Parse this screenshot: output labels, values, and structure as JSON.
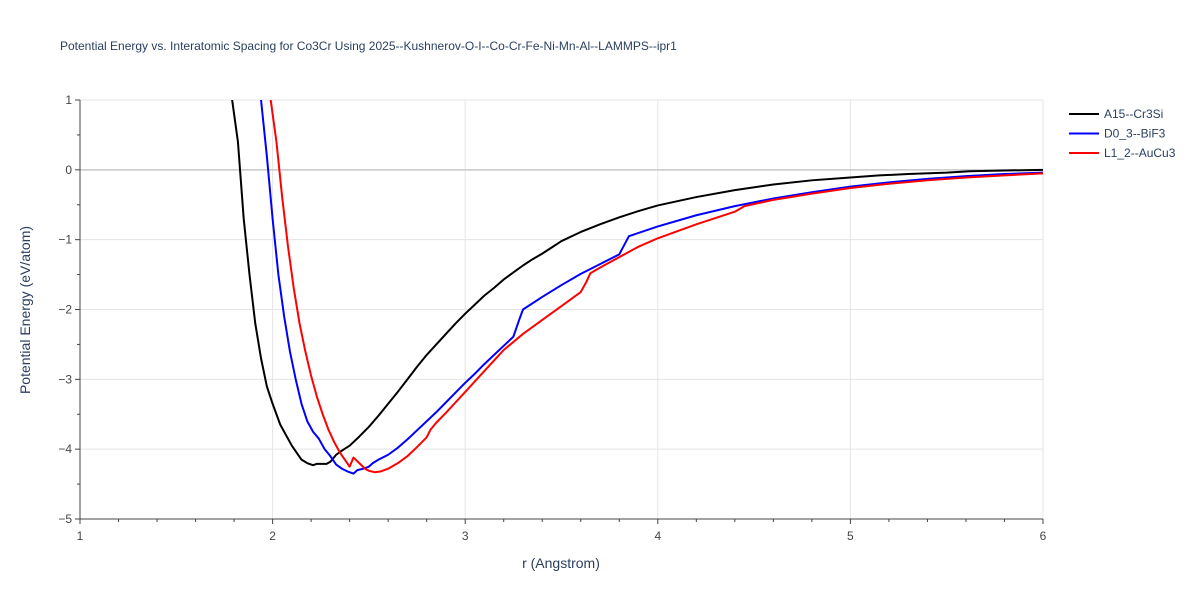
{
  "chart_data": {
    "type": "line",
    "title": "Potential Energy vs. Interatomic Spacing for Co3Cr Using 2025--Kushnerov-O-I--Co-Cr-Fe-Ni-Mn-Al--LAMMPS--ipr1",
    "xlabel": "r (Angstrom)",
    "ylabel": "Potential Energy (eV/atom)",
    "xlim": [
      1,
      6
    ],
    "ylim": [
      -5,
      1
    ],
    "xticks": [
      1,
      2,
      3,
      4,
      5,
      6
    ],
    "xtick_labels": [
      "1",
      "2",
      "3",
      "4",
      "5",
      "6"
    ],
    "yticks": [
      1,
      0,
      -1,
      -2,
      -3,
      -4,
      -5
    ],
    "ytick_labels": [
      "1",
      "0",
      "−1",
      "−2",
      "−3",
      "−4",
      "−5"
    ],
    "grid": true,
    "legend_position": "top-right",
    "series": [
      {
        "name": "A15--Cr3Si",
        "color": "#000000",
        "x": [
          1.79,
          1.82,
          1.85,
          1.88,
          1.91,
          1.94,
          1.97,
          2.0,
          2.04,
          2.1,
          2.15,
          2.18,
          2.21,
          2.23,
          2.26,
          2.28,
          2.3,
          2.33,
          2.36,
          2.4,
          2.45,
          2.5,
          2.55,
          2.6,
          2.65,
          2.7,
          2.75,
          2.8,
          2.85,
          2.9,
          2.95,
          3.0,
          3.05,
          3.1,
          3.15,
          3.2,
          3.25,
          3.3,
          3.35,
          3.4,
          3.45,
          3.5,
          3.6,
          3.7,
          3.8,
          3.9,
          4.0,
          4.2,
          4.4,
          4.6,
          4.8,
          5.0,
          5.15,
          5.3,
          5.5,
          5.62,
          5.8,
          6.0
        ],
        "y": [
          1.0,
          0.4,
          -0.7,
          -1.5,
          -2.2,
          -2.7,
          -3.1,
          -3.35,
          -3.65,
          -3.95,
          -4.15,
          -4.2,
          -4.23,
          -4.21,
          -4.21,
          -4.21,
          -4.18,
          -4.08,
          -4.02,
          -3.95,
          -3.82,
          -3.68,
          -3.52,
          -3.35,
          -3.18,
          -3.0,
          -2.82,
          -2.65,
          -2.5,
          -2.35,
          -2.2,
          -2.06,
          -1.93,
          -1.8,
          -1.69,
          -1.57,
          -1.47,
          -1.37,
          -1.28,
          -1.2,
          -1.11,
          -1.02,
          -0.89,
          -0.78,
          -0.68,
          -0.59,
          -0.51,
          -0.39,
          -0.29,
          -0.21,
          -0.15,
          -0.11,
          -0.08,
          -0.06,
          -0.04,
          -0.02,
          -0.01,
          0.0
        ]
      },
      {
        "name": "D0_3--BiF3",
        "color": "#0000ff",
        "x": [
          1.94,
          1.97,
          2.0,
          2.03,
          2.06,
          2.09,
          2.12,
          2.15,
          2.18,
          2.21,
          2.24,
          2.27,
          2.3,
          2.33,
          2.36,
          2.39,
          2.42,
          2.44,
          2.47,
          2.5,
          2.52,
          2.55,
          2.6,
          2.65,
          2.7,
          2.75,
          2.8,
          2.85,
          2.9,
          2.95,
          3.0,
          3.05,
          3.1,
          3.15,
          3.2,
          3.25,
          3.28,
          3.3,
          3.4,
          3.5,
          3.6,
          3.7,
          3.8,
          3.85,
          4.0,
          4.2,
          4.4,
          4.6,
          4.8,
          5.0,
          5.2,
          5.4,
          5.6,
          5.8,
          6.0
        ],
        "y": [
          1.0,
          0.2,
          -0.7,
          -1.5,
          -2.1,
          -2.6,
          -3.0,
          -3.35,
          -3.6,
          -3.75,
          -3.85,
          -4.0,
          -4.1,
          -4.22,
          -4.28,
          -4.32,
          -4.35,
          -4.3,
          -4.28,
          -4.25,
          -4.2,
          -4.15,
          -4.08,
          -3.98,
          -3.86,
          -3.73,
          -3.6,
          -3.47,
          -3.33,
          -3.19,
          -3.05,
          -2.92,
          -2.78,
          -2.65,
          -2.52,
          -2.39,
          -2.15,
          -2.0,
          -1.82,
          -1.65,
          -1.49,
          -1.35,
          -1.21,
          -0.95,
          -0.81,
          -0.65,
          -0.52,
          -0.41,
          -0.32,
          -0.24,
          -0.18,
          -0.13,
          -0.09,
          -0.06,
          -0.04
        ]
      },
      {
        "name": "L1_2--AuCu3",
        "color": "#ff0000",
        "x": [
          1.99,
          2.02,
          2.05,
          2.08,
          2.11,
          2.14,
          2.17,
          2.2,
          2.23,
          2.26,
          2.29,
          2.32,
          2.35,
          2.38,
          2.4,
          2.42,
          2.45,
          2.48,
          2.5,
          2.53,
          2.56,
          2.6,
          2.65,
          2.7,
          2.75,
          2.8,
          2.82,
          2.85,
          2.9,
          2.95,
          3.0,
          3.05,
          3.1,
          3.15,
          3.2,
          3.3,
          3.4,
          3.5,
          3.6,
          3.63,
          3.65,
          3.7,
          3.8,
          3.9,
          4.0,
          4.2,
          4.4,
          4.45,
          4.6,
          4.8,
          5.0,
          5.2,
          5.4,
          5.6,
          5.8,
          6.0
        ],
        "y": [
          1.0,
          0.4,
          -0.4,
          -1.1,
          -1.7,
          -2.2,
          -2.6,
          -2.95,
          -3.25,
          -3.5,
          -3.72,
          -3.9,
          -4.05,
          -4.17,
          -4.25,
          -4.12,
          -4.2,
          -4.28,
          -4.31,
          -4.33,
          -4.32,
          -4.28,
          -4.2,
          -4.1,
          -3.97,
          -3.83,
          -3.72,
          -3.62,
          -3.48,
          -3.33,
          -3.18,
          -3.03,
          -2.88,
          -2.73,
          -2.58,
          -2.35,
          -2.15,
          -1.95,
          -1.75,
          -1.6,
          -1.48,
          -1.4,
          -1.25,
          -1.1,
          -0.98,
          -0.78,
          -0.6,
          -0.52,
          -0.43,
          -0.34,
          -0.26,
          -0.2,
          -0.15,
          -0.11,
          -0.08,
          -0.05
        ]
      }
    ]
  }
}
